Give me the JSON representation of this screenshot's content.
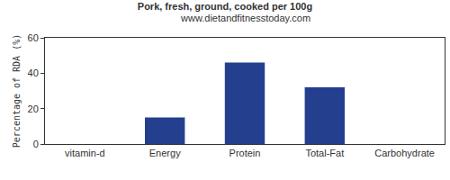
{
  "chart_data": {
    "type": "bar",
    "title": "Pork, fresh, ground, cooked per 100g",
    "subtitle": "www.dietandfitnesstoday.com",
    "y_label": "Percentage of RDA (%)",
    "categories": [
      "vitamin-d",
      "Energy",
      "Protein",
      "Total-Fat",
      "Carbohydrate"
    ],
    "values": [
      0,
      15,
      46,
      32,
      0
    ],
    "color": "#233f8e",
    "ylim": [
      0,
      60
    ],
    "yticks": [
      0,
      20,
      40,
      60
    ],
    "grid": false
  }
}
